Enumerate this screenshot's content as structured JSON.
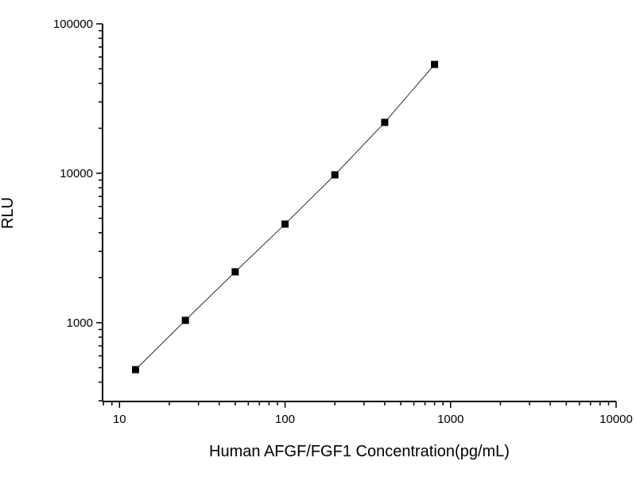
{
  "chart_data": {
    "type": "line",
    "title": "",
    "xlabel": "Human AFGF/FGF1 Concentration(pg/mL)",
    "ylabel": "RLU",
    "x_scale": "log",
    "y_scale": "log",
    "xlim": [
      7.9,
      10000
    ],
    "ylim": [
      297,
      100000
    ],
    "x_ticks": [
      10,
      100,
      1000,
      10000
    ],
    "x_tick_labels": [
      "10",
      "100",
      "1000",
      "10000"
    ],
    "y_ticks": [
      1000,
      10000,
      100000
    ],
    "y_tick_labels": [
      "1000",
      "10000",
      "100000"
    ],
    "grid": false,
    "marker": "square",
    "line_color": "#000000",
    "marker_color": "#000000",
    "series": [
      {
        "x": [
          12.5,
          25,
          50,
          100,
          200,
          400,
          800
        ],
        "y": [
          485,
          1037,
          2190,
          4570,
          9760,
          21900,
          53500
        ]
      }
    ]
  }
}
